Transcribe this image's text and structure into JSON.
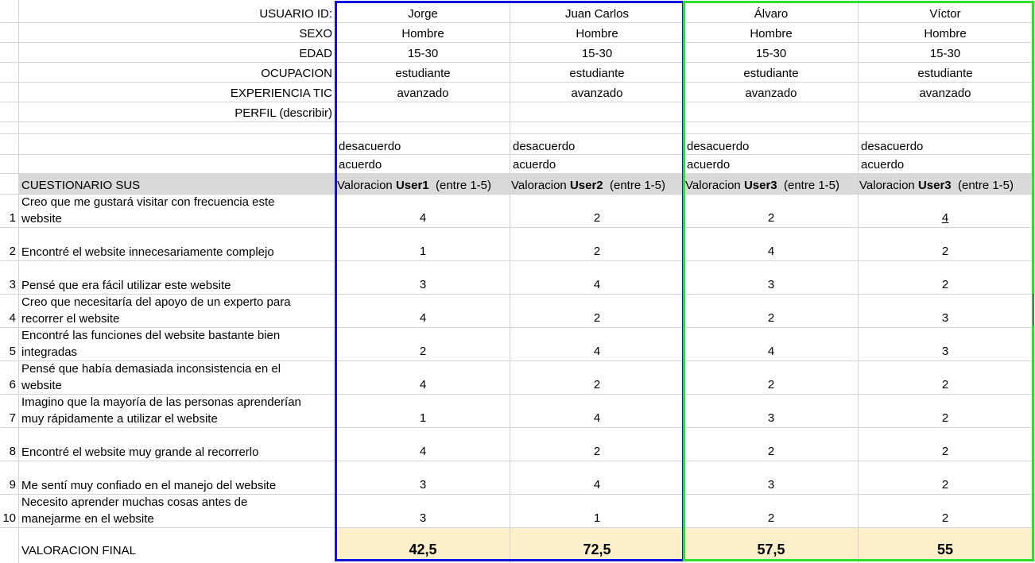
{
  "header_labels": {
    "user_id": "USUARIO ID:",
    "sexo": "SEXO",
    "edad": "EDAD",
    "ocupacion": "OCUPACION",
    "experiencia": "EXPERIENCIA TIC",
    "perfil": "PERFIL (describir)"
  },
  "users": [
    {
      "name": "Jorge",
      "sexo": "Hombre",
      "edad": "15-30",
      "ocupacion": "estudiante",
      "experiencia": "avanzado",
      "scale_top": "desacuerdo",
      "scale_bottom": "acuerdo",
      "val_prefix": "Valoracion ",
      "val_user": "User1",
      "val_suffix": "  (entre 1-5)",
      "final": "42,5"
    },
    {
      "name": "Juan Carlos",
      "sexo": "Hombre",
      "edad": "15-30",
      "ocupacion": "estudiante",
      "experiencia": "avanzado",
      "scale_top": "desacuerdo",
      "scale_bottom": "acuerdo",
      "val_prefix": "Valoracion ",
      "val_user": "User2",
      "val_suffix": "  (entre 1-5)",
      "final": "72,5"
    },
    {
      "name": "Álvaro",
      "sexo": "Hombre",
      "edad": "15-30",
      "ocupacion": "estudiante",
      "experiencia": "avanzado",
      "scale_top": "desacuerdo",
      "scale_bottom": "acuerdo",
      "val_prefix": "Valoracion ",
      "val_user": "User3",
      "val_suffix": "  (entre 1-5)",
      "final": "57,5"
    },
    {
      "name": "Víctor",
      "sexo": "Hombre",
      "edad": "15-30",
      "ocupacion": "estudiante",
      "experiencia": "avanzado",
      "scale_top": "desacuerdo",
      "scale_bottom": "acuerdo",
      "val_prefix": "Valoracion ",
      "val_user": "User3",
      "val_suffix": "  (entre 1-5)",
      "final": "55"
    }
  ],
  "questionnaire_title": "CUESTIONARIO SUS",
  "questions": [
    {
      "n": "1",
      "l1": "Creo que me gustará visitar con frecuencia este",
      "l2": "website",
      "scores": [
        "4",
        "2",
        "2",
        "4"
      ]
    },
    {
      "n": "2",
      "l1": "",
      "l2": "Encontré el website innecesariamente complejo",
      "scores": [
        "1",
        "2",
        "4",
        "2"
      ]
    },
    {
      "n": "3",
      "l1": "",
      "l2": "Pensé que era fácil utilizar este website",
      "scores": [
        "3",
        "4",
        "3",
        "2"
      ]
    },
    {
      "n": "4",
      "l1": "Creo que necesitaría del apoyo de un experto para",
      "l2": "recorrer el website",
      "scores": [
        "4",
        "2",
        "2",
        "3"
      ]
    },
    {
      "n": "5",
      "l1": "Encontré las funciones del website bastante bien",
      "l2": "integradas",
      "scores": [
        "2",
        "4",
        "4",
        "3"
      ]
    },
    {
      "n": "6",
      "l1": "Pensé que había demasiada inconsistencia en el",
      "l2": "website",
      "scores": [
        "4",
        "2",
        "2",
        "2"
      ]
    },
    {
      "n": "7",
      "l1": "Imagino que la mayoría de las personas aprenderían",
      "l2": "muy rápidamente a utilizar el website",
      "scores": [
        "1",
        "4",
        "3",
        "2"
      ]
    },
    {
      "n": "8",
      "l1": "",
      "l2": "Encontré el website muy grande al recorrerlo",
      "scores": [
        "4",
        "2",
        "2",
        "2"
      ]
    },
    {
      "n": "9",
      "l1": "",
      "l2": "Me sentí muy confiado en el manejo del website",
      "scores": [
        "3",
        "4",
        "3",
        "2"
      ]
    },
    {
      "n": "10",
      "l1": "Necesito aprender muchas cosas antes de",
      "l2": "manejarme en el website",
      "scores": [
        "3",
        "1",
        "2",
        "2"
      ]
    }
  ],
  "final_label": "VALORACION FINAL",
  "colors": {
    "blue_frame": "#1010e0",
    "green_frame": "#2ee02e",
    "gray_row": "#d9d9d9",
    "final_row": "#fdefca",
    "grid": "#d4d4d4"
  }
}
